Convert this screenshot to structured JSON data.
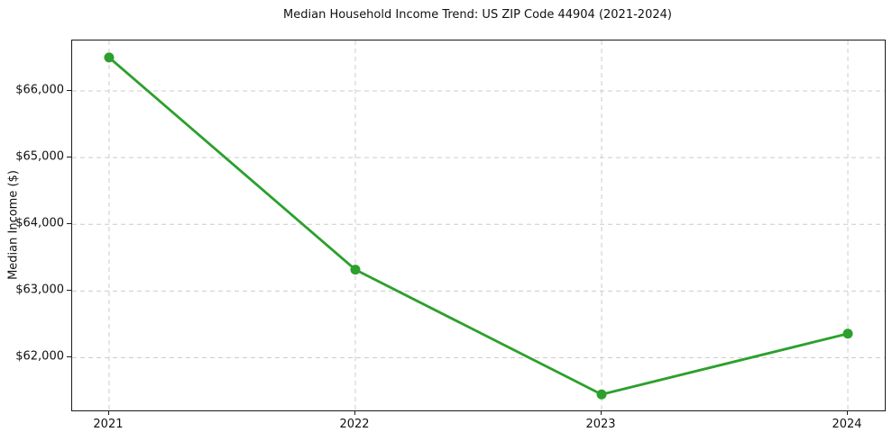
{
  "chart_data": {
    "type": "line",
    "title": "Median Household Income Trend: US ZIP Code 44904 (2021-2024)",
    "xlabel": "",
    "ylabel": "Median Income ($)",
    "x": [
      2021,
      2022,
      2023,
      2024
    ],
    "series": [
      {
        "name": "Median Household Income",
        "values": [
          66500,
          63320,
          61450,
          62360
        ]
      }
    ],
    "xticks": [
      2021,
      2022,
      2023,
      2024
    ],
    "xtick_labels": [
      "2021",
      "2022",
      "2023",
      "2024"
    ],
    "yticks": [
      62000,
      63000,
      64000,
      65000,
      66000
    ],
    "ytick_labels": [
      "$62,000",
      "$63,000",
      "$64,000",
      "$65,000",
      "$66,000"
    ],
    "xlim": [
      2020.85,
      2024.15
    ],
    "ylim": [
      61210,
      66755
    ],
    "grid": true,
    "grid_style": "dashed",
    "legend": "none",
    "line_color": "#2ca02c",
    "marker": "circle",
    "marker_radius": 5.5,
    "grid_color": "#cccccc",
    "spine_color": "#1a1a1a",
    "background_color": "#ffffff"
  }
}
